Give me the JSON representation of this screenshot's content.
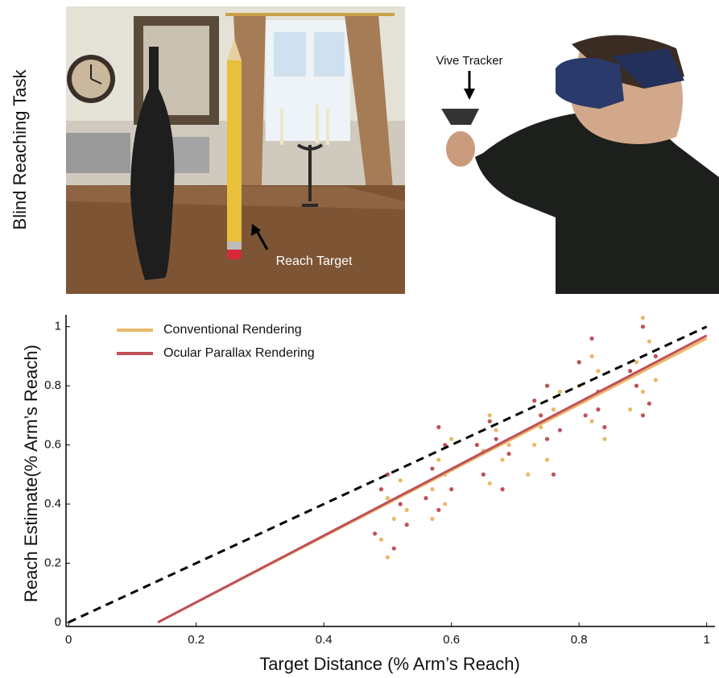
{
  "panels": {
    "side_label": "Blind Reaching Task",
    "scene_annotation": "Reach Target",
    "photo_annotation": "Vive Tracker"
  },
  "chart_data": {
    "type": "scatter",
    "x_label": "Target Distance (% Arm’s Reach)",
    "y_label": "Reach Estimate(% Arm’s Reach)",
    "xlim": [
      -0.004,
      1.013
    ],
    "ylim": [
      -0.014,
      1.04
    ],
    "xticks": [
      0,
      0.2,
      0.4,
      0.6,
      0.8,
      1
    ],
    "yticks": [
      0,
      0.2,
      0.4,
      0.6,
      0.8,
      1
    ],
    "legend": "upper left",
    "reference_line": {
      "color": "#000000",
      "x": [
        0,
        1
      ],
      "values": [
        0,
        1
      ]
    },
    "series": [
      {
        "name": "Conventional Rendering",
        "color": "#e8b96a",
        "x": [
          0.49,
          0.5,
          0.51,
          0.52,
          0.5,
          0.53,
          0.57,
          0.58,
          0.59,
          0.6,
          0.57,
          0.59,
          0.65,
          0.66,
          0.67,
          0.68,
          0.66,
          0.69,
          0.74,
          0.75,
          0.76,
          0.73,
          0.77,
          0.72,
          0.81,
          0.82,
          0.83,
          0.84,
          0.8,
          0.82,
          0.89,
          0.9,
          0.91,
          0.92,
          0.88,
          0.9
        ],
        "values": [
          0.28,
          0.42,
          0.35,
          0.48,
          0.22,
          0.38,
          0.45,
          0.55,
          0.4,
          0.62,
          0.35,
          0.5,
          0.58,
          0.47,
          0.65,
          0.55,
          0.7,
          0.6,
          0.66,
          0.55,
          0.72,
          0.6,
          0.78,
          0.5,
          0.75,
          0.68,
          0.85,
          0.62,
          0.8,
          0.9,
          0.88,
          0.78,
          0.95,
          0.82,
          0.72,
          1.03
        ],
        "fit": {
          "x": [
            0.14,
            1
          ],
          "values": [
            0,
            0.96
          ]
        }
      },
      {
        "name": "Ocular Parallax Rendering",
        "color": "#c0505a",
        "x": [
          0.48,
          0.5,
          0.51,
          0.52,
          0.49,
          0.53,
          0.57,
          0.58,
          0.59,
          0.6,
          0.58,
          0.56,
          0.65,
          0.67,
          0.68,
          0.66,
          0.69,
          0.64,
          0.74,
          0.75,
          0.76,
          0.73,
          0.77,
          0.75,
          0.81,
          0.82,
          0.83,
          0.84,
          0.8,
          0.83,
          0.89,
          0.9,
          0.91,
          0.92,
          0.88,
          0.9
        ],
        "values": [
          0.3,
          0.5,
          0.25,
          0.4,
          0.45,
          0.33,
          0.52,
          0.38,
          0.6,
          0.45,
          0.66,
          0.42,
          0.5,
          0.62,
          0.45,
          0.68,
          0.57,
          0.6,
          0.7,
          0.62,
          0.5,
          0.75,
          0.65,
          0.8,
          0.7,
          0.96,
          0.78,
          0.66,
          0.88,
          0.72,
          0.8,
          1.0,
          0.74,
          0.9,
          0.85,
          0.7
        ],
        "fit": {
          "x": [
            0.14,
            1
          ],
          "values": [
            0,
            0.97
          ]
        }
      }
    ]
  }
}
